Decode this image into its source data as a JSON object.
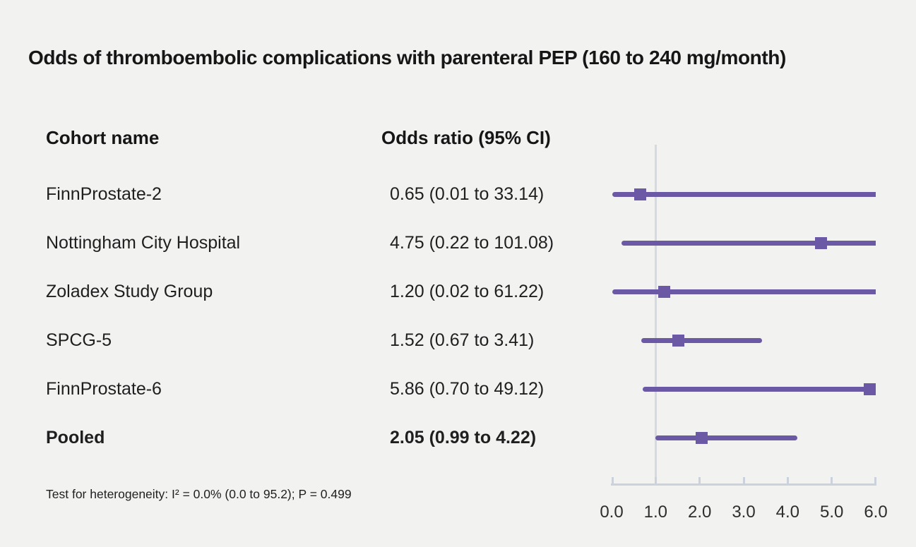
{
  "title": "Odds of thromboembolic complications with parenteral PEP (160 to 240 mg/month)",
  "table": {
    "col1_header": "Cohort name",
    "col2_header": "Odds ratio (95% CI)"
  },
  "footnote": "Test for heterogeneity: I² = 0.0% (0.0 to 95.2); P = 0.499",
  "colors": {
    "background": "#f2f2f1",
    "text": "#1f1f1f",
    "series": "#6b59a5",
    "reference_line": "#d5dae2",
    "axis": "#cbd2dc",
    "tick_label": "#2e2e2e"
  },
  "chart_data": {
    "type": "forest",
    "title": "Odds of thromboembolic complications with parenteral PEP (160 to 240 mg/month)",
    "xlabel": "",
    "ylabel": "",
    "xlim": [
      0.0,
      6.0
    ],
    "x_ticks": [
      0.0,
      1.0,
      2.0,
      3.0,
      4.0,
      5.0,
      6.0
    ],
    "x_tick_labels": [
      "0.0",
      "1.0",
      "2.0",
      "3.0",
      "4.0",
      "5.0",
      "6.0"
    ],
    "reference_line_x": 1.0,
    "grid": false,
    "legend": false,
    "rows": [
      {
        "name": "FinnProstate-2",
        "or_label": "0.65 (0.01 to 33.14)",
        "estimate": 0.65,
        "ci_low": 0.01,
        "ci_high": 33.14,
        "bold": false
      },
      {
        "name": "Nottingham City Hospital",
        "or_label": "4.75 (0.22 to 101.08)",
        "estimate": 4.75,
        "ci_low": 0.22,
        "ci_high": 101.08,
        "bold": false
      },
      {
        "name": "Zoladex Study Group",
        "or_label": "1.20 (0.02 to 61.22)",
        "estimate": 1.2,
        "ci_low": 0.02,
        "ci_high": 61.22,
        "bold": false
      },
      {
        "name": "SPCG-5",
        "or_label": "1.52 (0.67 to 3.41)",
        "estimate": 1.52,
        "ci_low": 0.67,
        "ci_high": 3.41,
        "bold": false
      },
      {
        "name": "FinnProstate-6",
        "or_label": "5.86 (0.70 to 49.12)",
        "estimate": 5.86,
        "ci_low": 0.7,
        "ci_high": 49.12,
        "bold": false
      },
      {
        "name": "Pooled",
        "or_label": "2.05 (0.99 to 4.22)",
        "estimate": 2.05,
        "ci_low": 0.99,
        "ci_high": 4.22,
        "bold": true
      }
    ],
    "heterogeneity_note": "Test for heterogeneity: I² = 0.0% (0.0 to 95.2); P = 0.499"
  }
}
